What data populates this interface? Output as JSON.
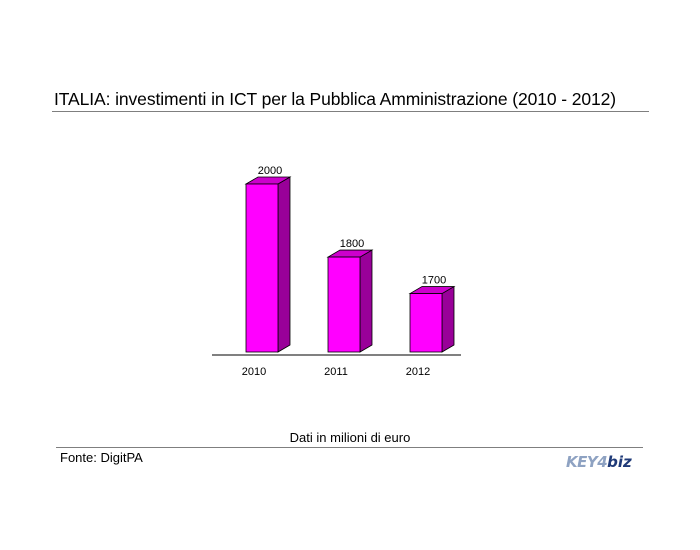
{
  "title": "ITALIA: investimenti in ICT per la Pubblica Amministrazione (2010 - 2012)",
  "note": "Dati in milioni di euro",
  "source": "Fonte: DigitPA",
  "logo": {
    "key": "KEY",
    "mark": "4",
    "biz": "biz"
  },
  "colors": {
    "bar_front": "#ff00ff",
    "bar_side": "#990099",
    "bar_top": "#cc00cc"
  },
  "chart_data": {
    "type": "bar",
    "style": "3d",
    "categories": [
      "2010",
      "2011",
      "2012"
    ],
    "values": [
      2000,
      1800,
      1700
    ],
    "ylim": [
      1540,
      2000
    ],
    "grid": false,
    "legend": "none",
    "xlabel": "",
    "ylabel": ""
  }
}
